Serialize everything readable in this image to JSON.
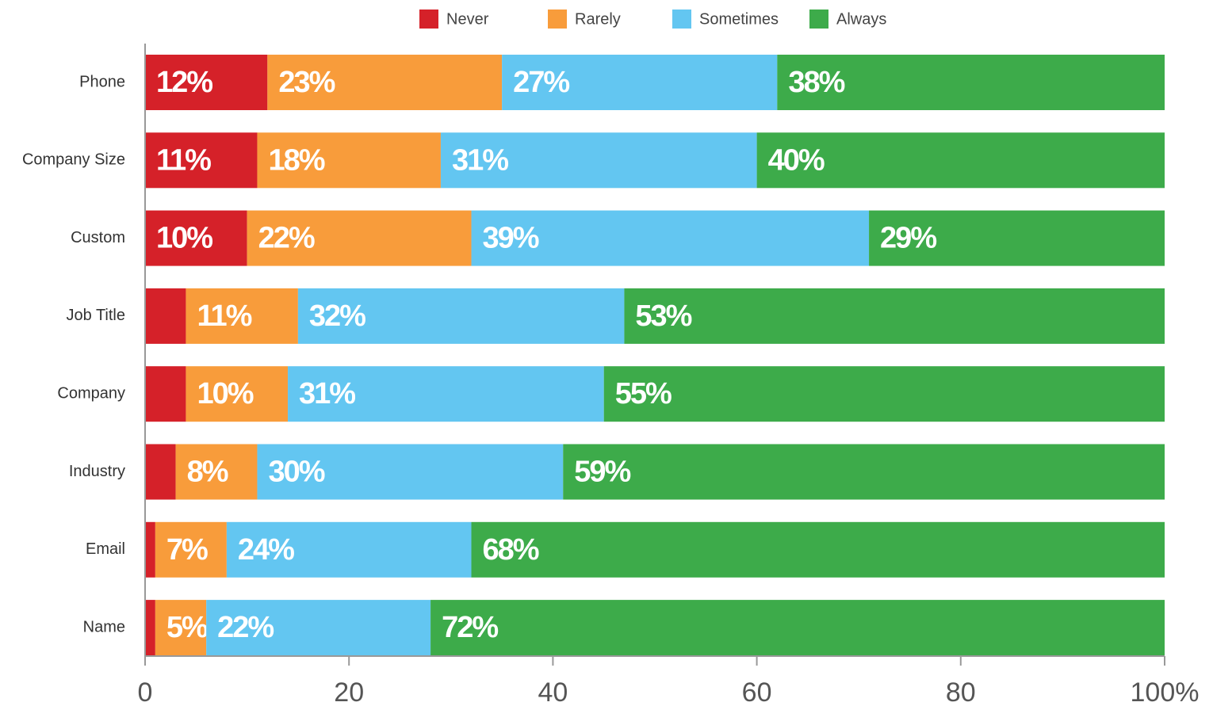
{
  "chart_data": {
    "type": "stacked-barh",
    "categories": [
      "Phone",
      "Company Size",
      "Custom",
      "Job Title",
      "Company",
      "Industry",
      "Email",
      "Name"
    ],
    "series": [
      {
        "name": "Never",
        "color": "#d52129",
        "values": [
          12,
          11,
          10,
          4,
          4,
          3,
          1,
          1
        ],
        "value_labels": [
          "12%",
          "11%",
          "10%",
          null,
          null,
          null,
          null,
          null
        ]
      },
      {
        "name": "Rarely",
        "color": "#f89c3b",
        "values": [
          23,
          18,
          22,
          11,
          10,
          8,
          7,
          5
        ],
        "value_labels": [
          "23%",
          "18%",
          "22%",
          "11%",
          "10%",
          "8%",
          "7%",
          "5%"
        ]
      },
      {
        "name": "Sometimes",
        "color": "#63c6f1",
        "values": [
          27,
          31,
          39,
          32,
          31,
          30,
          24,
          22
        ],
        "value_labels": [
          "27%",
          "31%",
          "39%",
          "32%",
          "31%",
          "30%",
          "24%",
          "22%"
        ]
      },
      {
        "name": "Always",
        "color": "#3dab4a",
        "values": [
          38,
          40,
          29,
          53,
          55,
          59,
          68,
          72
        ],
        "value_labels": [
          "38%",
          "40%",
          "29%",
          "53%",
          "55%",
          "59%",
          "68%",
          "72%"
        ]
      }
    ],
    "xlim": [
      0,
      100
    ],
    "xticks": [
      0,
      20,
      40,
      60,
      80,
      {
        "value": 100,
        "label": "100%"
      }
    ],
    "legend": "top"
  }
}
